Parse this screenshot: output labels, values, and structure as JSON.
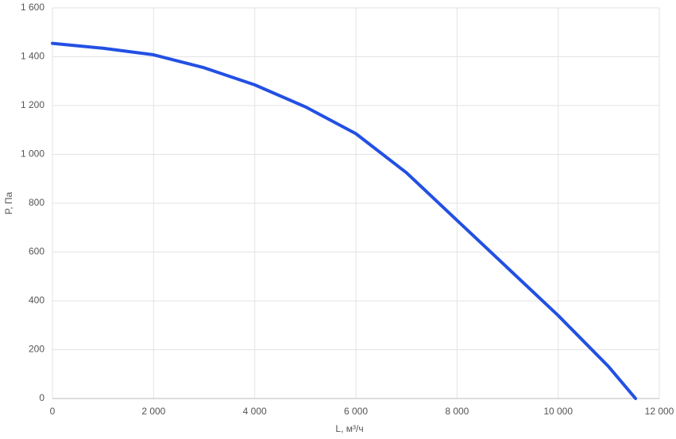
{
  "chart_data": {
    "type": "line",
    "x_label": "L, м³/ч",
    "y_label": "P, Па",
    "x": [
      0,
      1000,
      2000,
      3000,
      4000,
      5000,
      6000,
      7000,
      8000,
      9000,
      10000,
      11000,
      11530
    ],
    "series": [
      {
        "name": "P",
        "color": "#2350e3",
        "values": [
          1455,
          1435,
          1408,
          1355,
          1285,
          1195,
          1085,
          925,
          730,
          535,
          340,
          130,
          0
        ]
      }
    ],
    "xlim": [
      0,
      12000
    ],
    "xticks": [
      0,
      {
        "value": 2000,
        "label": "2 000"
      },
      {
        "value": 4000,
        "label": "4 000"
      },
      {
        "value": 6000,
        "label": "6 000"
      },
      {
        "value": 8000,
        "label": "8 000"
      },
      {
        "value": 10000,
        "label": "10 000"
      },
      {
        "value": 12000,
        "label": "12 000"
      }
    ],
    "ylim": [
      0,
      1600
    ],
    "yticks": [
      0,
      200,
      400,
      600,
      800,
      {
        "value": 1000,
        "label": "1 000"
      },
      {
        "value": 1200,
        "label": "1 200"
      },
      {
        "value": 1400,
        "label": "1 400"
      },
      {
        "value": 1600,
        "label": "1 600"
      }
    ],
    "grid": true
  }
}
